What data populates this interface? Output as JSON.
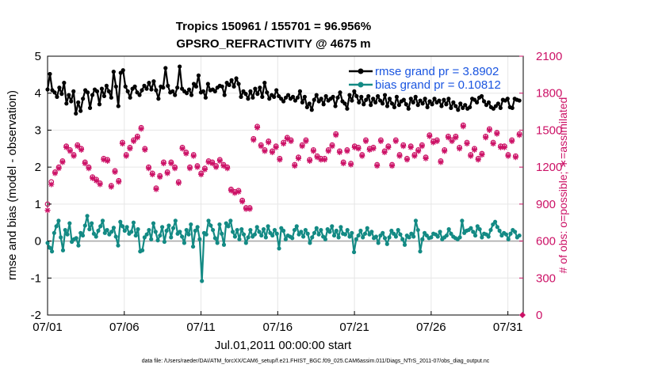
{
  "chart_data": {
    "type": "line",
    "title": "Tropics 150961 / 155701 = 96.956%",
    "subtitle": "GPSRO_REFRACTIVITY @ 4675 m",
    "xlabel": "Jul.01,2011 00:00:00 start",
    "ylabel": "rmse and bias (model - observation)",
    "y2label": "# of obs: o=possible; ∗=assimilated",
    "footnote": "data file: /Users/raeder/DAI/ATM_forcXX/CAM6_setup/f.e21.FHIST_BGC.f09_025.CAM6assim.011/Diags_NTrS_2011-07/obs_diag_output.nc",
    "x_ticks": [
      "07/01",
      "07/06",
      "07/11",
      "07/16",
      "07/21",
      "07/26",
      "07/31"
    ],
    "x_tick_days": [
      0,
      5,
      10,
      15,
      20,
      25,
      30
    ],
    "xlim_days": [
      0,
      31
    ],
    "ylim": [
      -2,
      5
    ],
    "y_ticks": [
      "-2",
      "-1",
      "0",
      "1",
      "2",
      "3",
      "4",
      "5"
    ],
    "y2lim": [
      0,
      2100
    ],
    "y2_ticks": [
      "0",
      "300",
      "600",
      "900",
      "1200",
      "1500",
      "1800",
      "2100"
    ],
    "legend_position": "top-right",
    "series": [
      {
        "name": "rmse grand pr = 3.8902",
        "color": "#000000",
        "marker": "circle",
        "values": [
          4.1,
          4.52,
          4.08,
          4.02,
          3.9,
          4.15,
          3.98,
          4.28,
          3.72,
          3.95,
          3.78,
          4.05,
          3.45,
          3.75,
          3.52,
          3.85,
          4.08,
          4.02,
          3.6,
          3.95,
          4.1,
          4.05,
          3.7,
          4.12,
          3.92,
          4.2,
          4.05,
          3.88,
          4.58,
          4.18,
          3.65,
          4.55,
          4.62,
          4.18,
          4.05,
          3.88,
          4.12,
          4.18,
          4.02,
          3.95,
          4.08,
          4.2,
          4.12,
          4.28,
          4.1,
          4.32,
          4.08,
          3.85,
          4.18,
          4.15,
          4.68,
          4.2,
          4.02,
          4.05,
          3.95,
          4.15,
          4.72,
          4.12,
          4.05,
          4.0,
          4.1,
          3.95,
          4.25,
          4.18,
          4.48,
          4.02,
          4.05,
          3.88,
          4.25,
          4.08,
          4.1,
          4.05,
          4.15,
          4.2,
          4.18,
          3.95,
          4.28,
          4.22,
          4.35,
          4.18,
          4.4,
          4.25,
          3.9,
          4.05,
          3.98,
          3.85,
          4.05,
          3.88,
          4.12,
          3.98,
          4.15,
          3.9,
          4.28,
          4.02,
          3.85,
          3.95,
          3.9,
          4.08,
          3.92,
          3.85,
          3.78,
          3.88,
          3.95,
          3.85,
          3.9,
          3.8,
          3.88,
          4.05,
          3.75,
          3.9,
          3.62,
          3.72,
          3.55,
          3.82,
          3.95,
          3.78,
          3.85,
          3.7,
          3.92,
          3.8,
          3.85,
          3.9,
          3.65,
          3.88,
          4.02,
          3.78,
          3.72,
          3.58,
          3.95,
          3.8,
          4.05,
          3.92,
          3.75,
          3.9,
          3.7,
          3.82,
          3.92,
          3.68,
          3.85,
          3.75,
          3.92,
          3.8,
          3.72,
          3.95,
          3.65,
          3.85,
          3.72,
          3.62,
          3.9,
          3.68,
          3.78,
          3.82,
          3.7,
          3.58,
          3.85,
          3.75,
          3.9,
          3.68,
          3.8,
          3.72,
          3.85,
          3.62,
          3.78,
          3.7,
          3.85,
          3.75,
          3.8,
          3.65,
          3.82,
          3.7,
          3.85,
          3.6,
          3.75,
          3.65,
          3.55,
          3.72,
          3.6,
          3.68,
          3.58,
          3.62,
          3.85,
          3.82,
          3.75,
          3.88,
          3.92,
          3.78,
          3.68,
          3.75,
          3.62,
          3.58,
          3.65,
          3.72,
          3.6,
          3.82,
          3.8,
          3.85
        ],
        "last_values": [
          3.62,
          3.6,
          3.85,
          3.82,
          3.8
        ]
      },
      {
        "name": "bias grand pr = 0.10812",
        "color": "#138a84",
        "marker": "circle",
        "values": [
          -0.05,
          -0.18,
          -0.28,
          0.22,
          0.4,
          0.55,
          0.1,
          -0.25,
          0.3,
          0.18,
          0.48,
          -0.02,
          0.05,
          0.08,
          -0.12,
          0.22,
          0.15,
          0.42,
          0.68,
          0.32,
          0.48,
          0.2,
          0.12,
          0.28,
          0.4,
          0.55,
          0.22,
          0.3,
          0.18,
          0.25,
          0.36,
          0.12,
          -0.12,
          0.52,
          0.4,
          0.28,
          0.38,
          0.2,
          0.25,
          0.5,
          0.15,
          0.32,
          -0.28,
          -0.25,
          0.1,
          0.18,
          0.3,
          0.05,
          0.48,
          0.25,
          0.02,
          0.15,
          0.38,
          -0.02,
          0.28,
          0.42,
          0.1,
          0.35,
          0.55,
          0.2,
          0.25,
          0.12,
          -0.05,
          0.3,
          0.18,
          0.45,
          -0.15,
          0.28,
          0.38,
          0.05,
          -1.08,
          0.22,
          0.18,
          0.55,
          0.42,
          0.3,
          0.08,
          -0.05,
          0.45,
          0.2,
          -0.1,
          0.48,
          0.4,
          0.55,
          0.25,
          0.12,
          0.3,
          0.05,
          0.32,
          0.18,
          -0.05,
          0.1,
          0.3,
          0.12,
          0.18,
          0.38,
          0.25,
          0.15,
          0.32,
          0.1,
          0.4,
          0.22,
          0.15,
          0.3,
          0.2,
          -0.2,
          0.35,
          0.28,
          0.05,
          0.15,
          0.12,
          0.08,
          0.3,
          0.4,
          0.18,
          0.25,
          0.12,
          0.3,
          0.2,
          -0.05,
          0.1,
          0.22,
          0.35,
          0.18,
          0.3,
          0.12,
          0.05,
          0.32,
          0.25,
          0.4,
          0.15,
          0.28,
          0.1,
          0.38,
          0.2,
          0.18,
          0.3,
          0.12,
          0.22,
          -0.3,
          0.05,
          0.15,
          0.28,
          0.1,
          0.2,
          0.35,
          0.18,
          0.25,
          0.08,
          0.12,
          -0.05,
          0.15,
          0.22,
          0.08,
          -0.08,
          0.1,
          0.28,
          0.2,
          0.12,
          0.3,
          0.18,
          0.05,
          -0.1,
          0.15,
          0.1,
          0.2,
          0.12,
          0.55,
          0.3,
          -0.28,
          0.05,
          0.22,
          0.15,
          0.08,
          0.1,
          0.2,
          0.18,
          0.12,
          0.25,
          0.05,
          0.1,
          0.15,
          0.32,
          0.2,
          0.12,
          0.08,
          0.05,
          0.1,
          0.55,
          0.22,
          0.28,
          0.3,
          0.35,
          0.25,
          0.15,
          0.4,
          0.32,
          0.1,
          0.2,
          0.18,
          0.12,
          0.3,
          0.45,
          0.52,
          0.38,
          0.28,
          0.15,
          0.22,
          0.18,
          0.05,
          0.2,
          0.3,
          0.25,
          0.1,
          0.15
        ]
      },
      {
        "name": "possible",
        "color": "#cc1166",
        "marker": "o",
        "axis": "right",
        "values": [
          900,
          1080,
          1160,
          1200,
          1250,
          1370,
          1340,
          1300,
          1380,
          1350,
          1240,
          1200,
          1120,
          1100,
          1070,
          1270,
          1260,
          1050,
          1170,
          1090,
          1400,
          1300,
          1360,
          1420,
          1450,
          1520,
          1350,
          1200,
          1150,
          1030,
          1130,
          1240,
          1160,
          1240,
          1200,
          1080,
          1360,
          1320,
          1200,
          1300,
          1210,
          1150,
          1190,
          1250,
          1240,
          1210,
          1260,
          1220,
          1200,
          1020,
          1000,
          1010,
          930,
          870,
          870,
          1430,
          1530,
          1380,
          1340,
          1410,
          1330,
          1370,
          1270,
          1400,
          1440,
          1420,
          1220,
          1280,
          1380,
          1420,
          1260,
          1340,
          1290,
          1270,
          1270,
          1340,
          1380,
          1470,
          1330,
          1240,
          1340,
          1230,
          1370,
          1360,
          1300,
          1420,
          1350,
          1360,
          1220,
          1420,
          1330,
          1370,
          1220,
          1420,
          1300,
          1380,
          1270,
          1370,
          1300,
          1340,
          1380,
          1280,
          1460,
          1410,
          1420,
          1250,
          1340,
          1450,
          1420,
          1450,
          1360,
          1540,
          1400,
          1300,
          1350,
          1270,
          1310,
          1450,
          1510,
          1400,
          1480,
          1370,
          1370,
          1300,
          1420,
          1290,
          1470
        ],
        "last_value": 0
      },
      {
        "name": "assimilated",
        "color": "#cc1166",
        "marker": "asterisk",
        "axis": "right",
        "values": [
          850,
          1060,
          1150,
          1190,
          1240,
          1360,
          1330,
          1290,
          1370,
          1340,
          1230,
          1190,
          1110,
          1090,
          1060,
          1260,
          1250,
          1040,
          1160,
          1080,
          1390,
          1290,
          1350,
          1410,
          1440,
          1510,
          1340,
          1190,
          1140,
          1020,
          1120,
          1230,
          1150,
          1230,
          1190,
          1070,
          1350,
          1310,
          1190,
          1290,
          1200,
          1140,
          1180,
          1240,
          1230,
          1200,
          1250,
          1210,
          1190,
          1010,
          990,
          1000,
          920,
          860,
          860,
          1420,
          1520,
          1370,
          1330,
          1400,
          1320,
          1360,
          1260,
          1390,
          1430,
          1410,
          1210,
          1270,
          1370,
          1410,
          1250,
          1330,
          1280,
          1260,
          1260,
          1330,
          1370,
          1460,
          1320,
          1230,
          1330,
          1220,
          1360,
          1350,
          1290,
          1410,
          1340,
          1350,
          1210,
          1410,
          1320,
          1360,
          1210,
          1410,
          1290,
          1370,
          1260,
          1360,
          1290,
          1330,
          1370,
          1270,
          1450,
          1400,
          1410,
          1240,
          1330,
          1440,
          1410,
          1440,
          1350,
          1530,
          1390,
          1290,
          1340,
          1260,
          1300,
          1440,
          1500,
          1390,
          1470,
          1360,
          1360,
          1290,
          1410,
          1280,
          1460
        ]
      }
    ]
  }
}
